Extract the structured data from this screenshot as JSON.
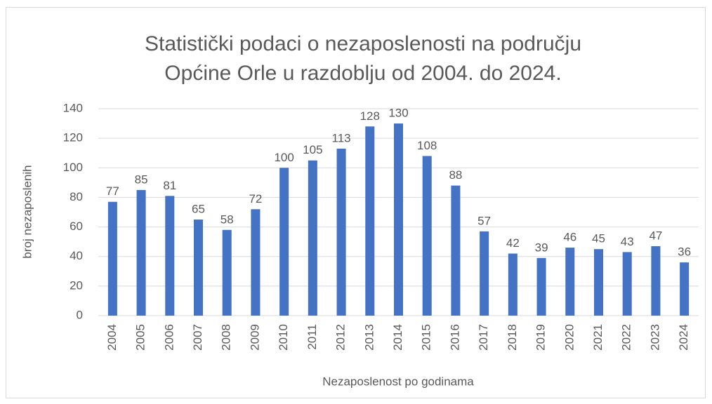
{
  "chart_data": {
    "type": "bar",
    "title": [
      "Statistički podaci o nezaposlenosti na području",
      "Općine Orle u razdoblju od 2004. do 2024."
    ],
    "x_label": "Nezaposlenost po godinama",
    "y_label": "broj nezaposlenih",
    "categories": [
      "2004",
      "2005",
      "2006",
      "2007",
      "2008",
      "2009",
      "2010",
      "2011",
      "2012",
      "2013",
      "2014",
      "2015",
      "2016",
      "2017",
      "2018",
      "2019",
      "2020",
      "2021",
      "2022",
      "2023",
      "2024"
    ],
    "values": [
      77,
      85,
      81,
      65,
      58,
      72,
      100,
      105,
      113,
      128,
      130,
      108,
      88,
      57,
      42,
      39,
      46,
      45,
      43,
      47,
      36
    ],
    "color": "#4472c4",
    "ylim": [
      0,
      140
    ],
    "yticks": [
      0,
      20,
      40,
      60,
      80,
      100,
      120,
      140
    ],
    "grid": true
  }
}
